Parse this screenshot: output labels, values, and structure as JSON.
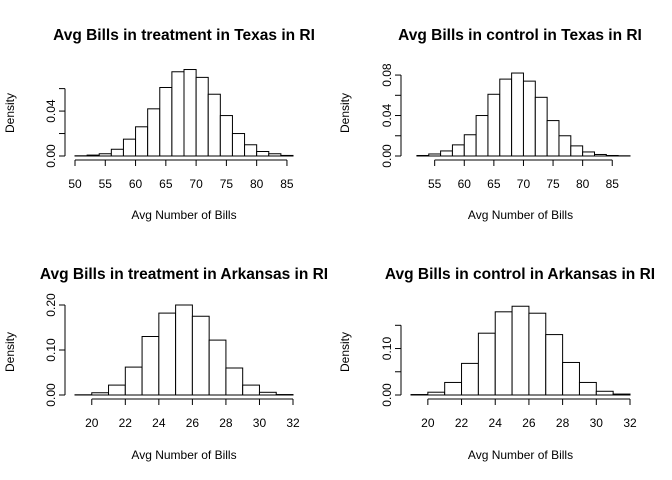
{
  "chart_data": [
    {
      "type": "bar",
      "title": "Avg Bills in treatment in Texas in RI",
      "xlabel": "Avg Number of Bills",
      "ylabel": "Density",
      "xlim": [
        50,
        86
      ],
      "ylim": [
        0,
        0.065
      ],
      "x_ticks": [
        50,
        55,
        60,
        65,
        70,
        75,
        80,
        85
      ],
      "y_ticks": [
        0.0,
        0.02,
        0.04,
        0.06
      ],
      "y_tick_labels": [
        "0.00",
        "",
        "0.04",
        ""
      ],
      "bin_edges": [
        50,
        52,
        54,
        56,
        58,
        60,
        62,
        64,
        66,
        68,
        70,
        72,
        74,
        76,
        78,
        80,
        82,
        84,
        86
      ],
      "values": [
        0.0002,
        0.0008,
        0.002,
        0.006,
        0.015,
        0.026,
        0.042,
        0.061,
        0.075,
        0.077,
        0.07,
        0.055,
        0.036,
        0.02,
        0.01,
        0.004,
        0.002,
        0.0005
      ]
    },
    {
      "type": "bar",
      "title": "Avg Bills in control in Texas in RI",
      "xlabel": "Avg Number of Bills",
      "ylabel": "Density",
      "xlim": [
        51,
        88
      ],
      "ylim": [
        0,
        0.085
      ],
      "x_ticks": [
        55,
        60,
        65,
        70,
        75,
        80,
        85
      ],
      "y_ticks": [
        0.0,
        0.02,
        0.04,
        0.06,
        0.08
      ],
      "y_tick_labels": [
        "0.00",
        "",
        "0.04",
        "",
        "0.08"
      ],
      "bin_edges": [
        52,
        54,
        56,
        58,
        60,
        62,
        64,
        66,
        68,
        70,
        72,
        74,
        76,
        78,
        80,
        82,
        84,
        86,
        88
      ],
      "values": [
        0.0005,
        0.002,
        0.005,
        0.011,
        0.021,
        0.04,
        0.061,
        0.076,
        0.082,
        0.074,
        0.058,
        0.035,
        0.02,
        0.01,
        0.004,
        0.0015,
        0.0005,
        0.0002
      ]
    },
    {
      "type": "bar",
      "title": "Avg Bills in treatment in Arkansas in RI",
      "xlabel": "Avg Number of Bills",
      "ylabel": "Density",
      "xlim": [
        19,
        32
      ],
      "ylim": [
        0,
        0.2
      ],
      "x_ticks": [
        20,
        22,
        24,
        26,
        28,
        30,
        32
      ],
      "y_ticks": [
        0.0,
        0.1,
        0.2
      ],
      "y_tick_labels": [
        "0.00",
        "0.10",
        "0.20"
      ],
      "bin_edges": [
        19,
        20,
        21,
        22,
        23,
        24,
        25,
        26,
        27,
        28,
        29,
        30,
        31,
        32
      ],
      "values": [
        0.0005,
        0.005,
        0.022,
        0.062,
        0.13,
        0.182,
        0.2,
        0.175,
        0.122,
        0.06,
        0.022,
        0.006,
        0.001
      ]
    },
    {
      "type": "bar",
      "title": "Avg Bills in control in Arkansas in RI",
      "xlabel": "Avg Number of Bills",
      "ylabel": "Density",
      "xlim": [
        19,
        32
      ],
      "ylim": [
        0,
        0.17
      ],
      "x_ticks": [
        20,
        22,
        24,
        26,
        28,
        30,
        32
      ],
      "y_ticks": [
        0.0,
        0.05,
        0.1,
        0.15
      ],
      "y_tick_labels": [
        "0.00",
        "",
        "0.10",
        ""
      ],
      "bin_edges": [
        19,
        20,
        21,
        22,
        23,
        24,
        25,
        26,
        27,
        28,
        29,
        30,
        31,
        32
      ],
      "values": [
        0.001,
        0.006,
        0.027,
        0.068,
        0.133,
        0.179,
        0.191,
        0.176,
        0.13,
        0.07,
        0.027,
        0.008,
        0.002
      ]
    }
  ]
}
